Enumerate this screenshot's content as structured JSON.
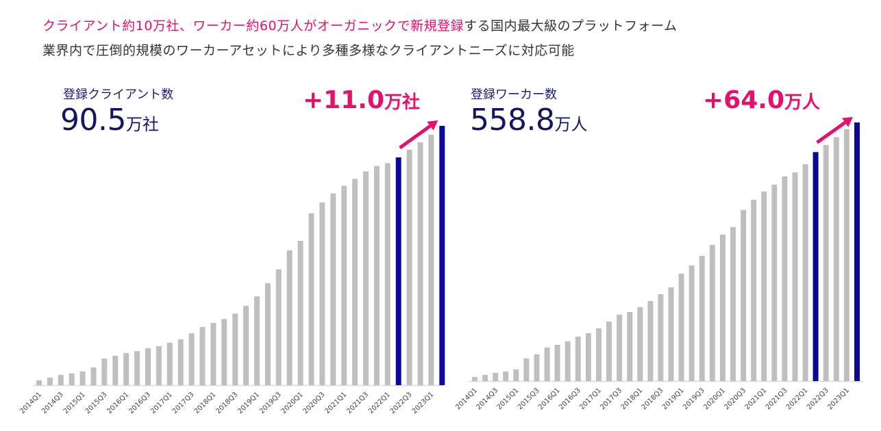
{
  "headline": {
    "line1_pink": "クライアント約10万社、ワーカー約60万人がオーガニックで新規登録",
    "line1_rest": "する国内最大級のプラットフォーム",
    "line2": "業界内で圧倒的規模のワーカーアセットにより多種多様なクライアントニーズに対応可能"
  },
  "colors": {
    "accent": "#e5106a",
    "highlight_bar": "#0a0a9a",
    "bar": "#bfbfbf",
    "navy_text": "#141466"
  },
  "chart_data": [
    {
      "type": "bar",
      "title": "登録クライアント数",
      "total_value": "90.5",
      "total_unit": "万社",
      "growth_value": "+11.0",
      "growth_unit": "万社",
      "xlabel": "",
      "ylabel": "",
      "ylim": [
        0,
        95
      ],
      "grid": false,
      "highlight_categories": [
        "2022Q2",
        "2023Q2"
      ],
      "categories": [
        "2014Q1",
        "2014Q2",
        "2014Q3",
        "2014Q4",
        "2015Q1",
        "2015Q2",
        "2015Q3",
        "2015Q4",
        "2016Q1",
        "2016Q2",
        "2016Q3",
        "2016Q4",
        "2017Q1",
        "2017Q2",
        "2017Q3",
        "2017Q4",
        "2018Q1",
        "2018Q2",
        "2018Q3",
        "2018Q4",
        "2019Q1",
        "2019Q2",
        "2019Q3",
        "2019Q4",
        "2020Q1",
        "2020Q2",
        "2020Q3",
        "2020Q4",
        "2021Q1",
        "2021Q2",
        "2021Q3",
        "2021Q4",
        "2022Q1",
        "2022Q2",
        "2022Q3",
        "2022Q4",
        "2023Q1",
        "2023Q2"
      ],
      "tick_labels": [
        "2014Q1",
        "2014Q3",
        "2015Q1",
        "2015Q3",
        "2016Q1",
        "2016Q3",
        "2017Q1",
        "2017Q3",
        "2018Q1",
        "2018Q3",
        "2019Q1",
        "2019Q3",
        "2020Q1",
        "2020Q3",
        "2021Q1",
        "2021Q3",
        "2022Q1",
        "2022Q3",
        "2023Q1"
      ],
      "values": [
        1.7,
        2.6,
        3.6,
        4.1,
        4.8,
        6.2,
        9.3,
        10.3,
        11.2,
        11.9,
        12.9,
        13.6,
        14.8,
        16.0,
        18.1,
        20.3,
        21.7,
        23.1,
        25.0,
        27.7,
        31.0,
        35.6,
        40.4,
        47.1,
        50.4,
        60.0,
        63.8,
        66.9,
        69.6,
        72.0,
        74.6,
        76.5,
        77.5,
        79.5,
        82.2,
        84.8,
        87.4,
        90.5
      ]
    },
    {
      "type": "bar",
      "title": "登録ワーカー数",
      "total_value": "558.8",
      "total_unit": "万人",
      "growth_value": "+64.0",
      "growth_unit": "万人",
      "xlabel": "",
      "ylabel": "",
      "ylim": [
        0,
        580
      ],
      "grid": false,
      "highlight_categories": [
        "2022Q2",
        "2023Q2"
      ],
      "categories": [
        "2014Q1",
        "2014Q2",
        "2014Q3",
        "2014Q4",
        "2015Q1",
        "2015Q2",
        "2015Q3",
        "2015Q4",
        "2016Q1",
        "2016Q2",
        "2016Q3",
        "2016Q4",
        "2017Q1",
        "2017Q2",
        "2017Q3",
        "2017Q4",
        "2018Q1",
        "2018Q2",
        "2018Q3",
        "2018Q4",
        "2019Q1",
        "2019Q2",
        "2019Q3",
        "2019Q4",
        "2020Q1",
        "2020Q2",
        "2020Q3",
        "2020Q4",
        "2021Q1",
        "2021Q2",
        "2021Q3",
        "2021Q4",
        "2022Q1",
        "2022Q2",
        "2022Q3",
        "2022Q4",
        "2023Q1",
        "2023Q2"
      ],
      "tick_labels": [
        "2014Q1",
        "2014Q3",
        "2015Q1",
        "2015Q3",
        "2016Q1",
        "2016Q3",
        "2017Q1",
        "2017Q3",
        "2018Q1",
        "2018Q3",
        "2019Q1",
        "2019Q3",
        "2020Q1",
        "2020Q3",
        "2021Q1",
        "2021Q3",
        "2022Q1",
        "2022Q3",
        "2023Q1"
      ],
      "values": [
        8.9,
        13.3,
        17.7,
        20.7,
        25.1,
        48.8,
        57.7,
        72.5,
        78.4,
        85.8,
        96.1,
        103.5,
        113.9,
        128.6,
        143.4,
        149.3,
        159.7,
        173.0,
        187.8,
        202.6,
        232.1,
        249.9,
        270.6,
        294.3,
        316.5,
        332.8,
        369.7,
        391.9,
        409.7,
        424.5,
        442.2,
        451.1,
        468.8,
        494.8,
        510.1,
        527.2,
        544.0,
        558.8
      ]
    }
  ]
}
